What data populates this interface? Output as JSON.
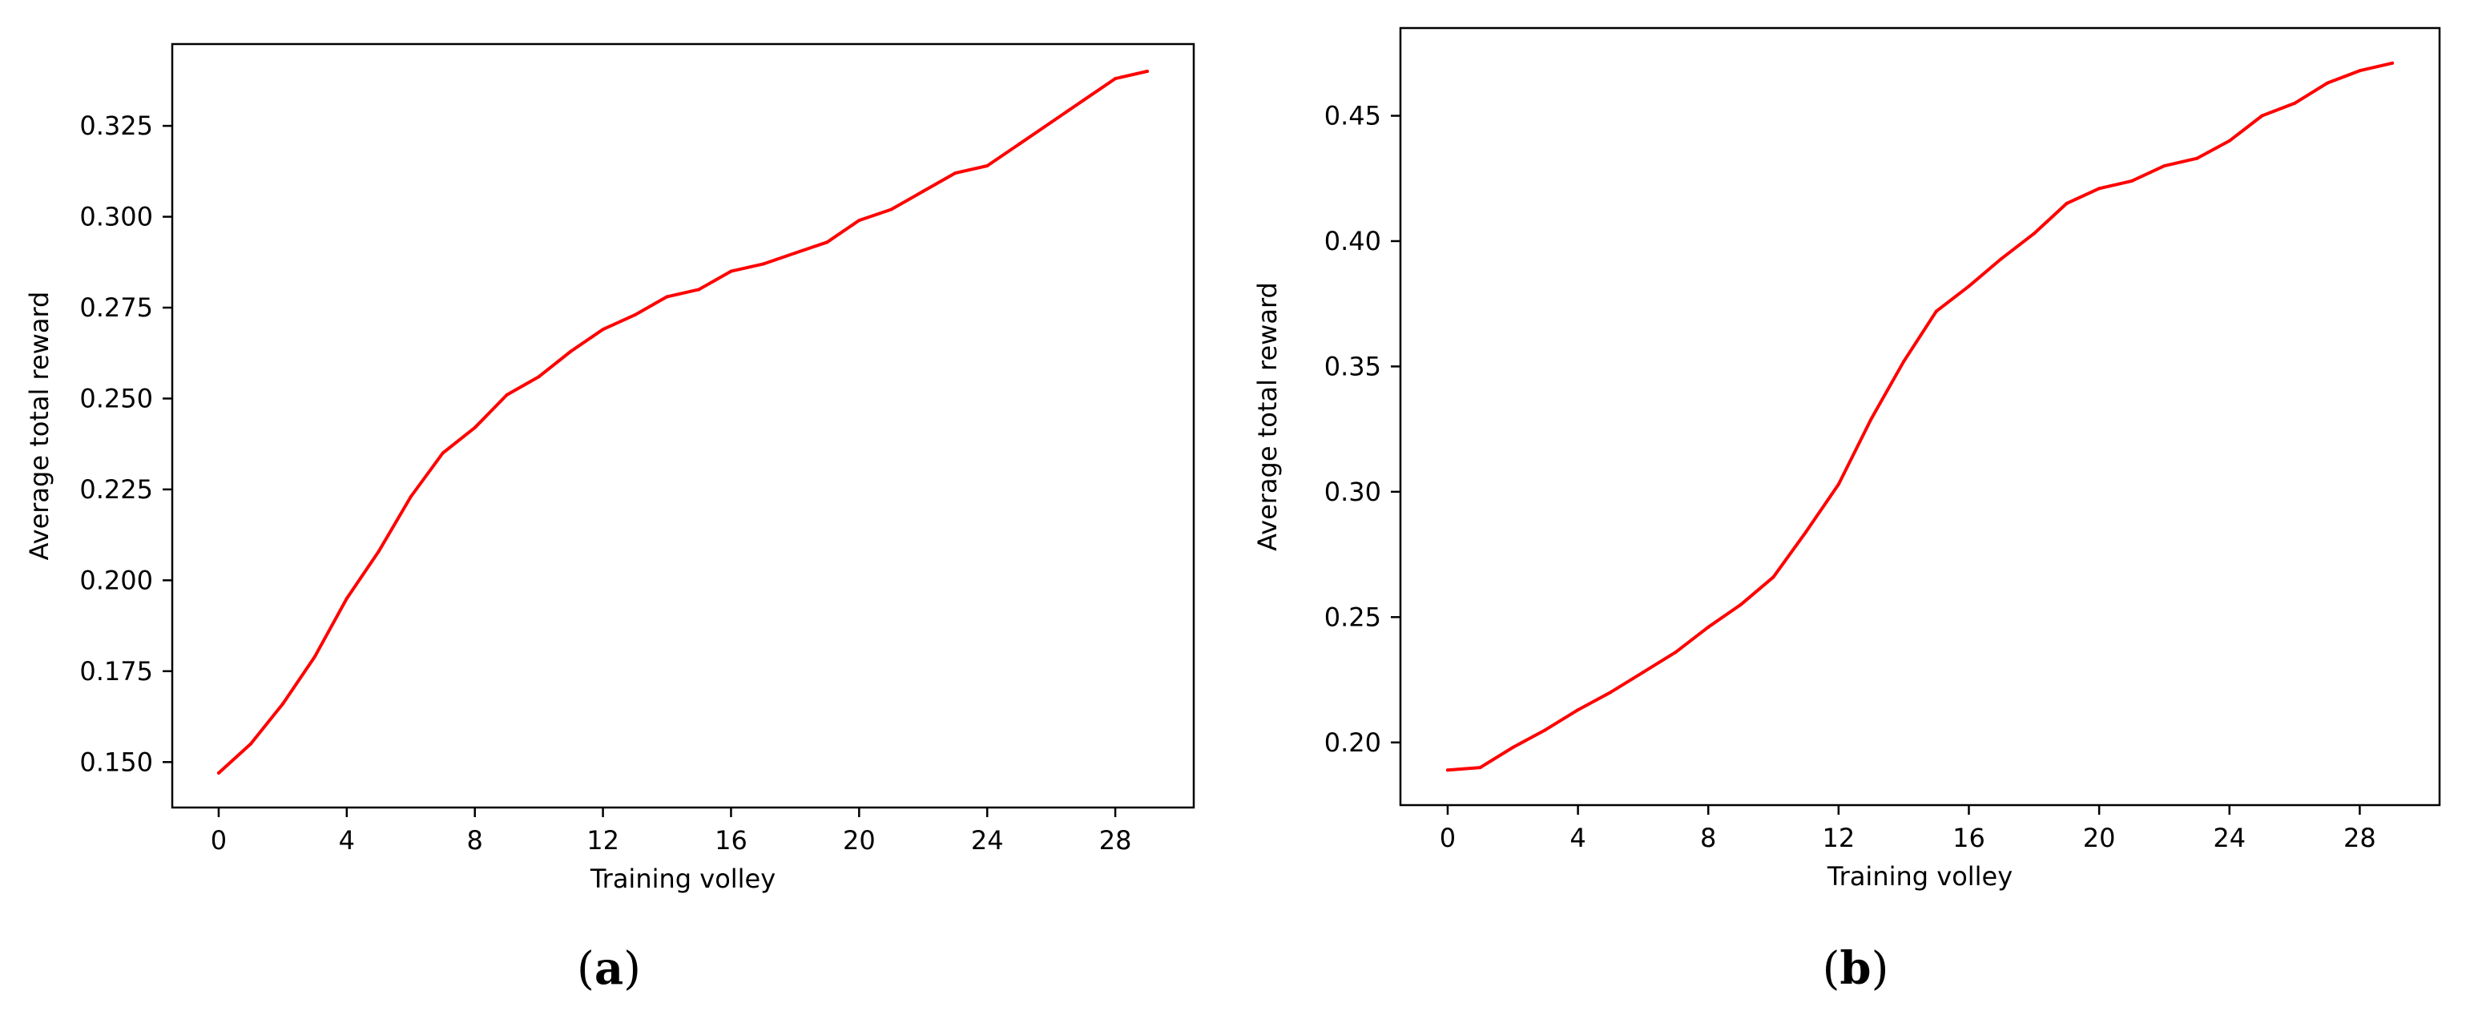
{
  "figure": {
    "panel_a_caption_open": "(",
    "panel_a_caption_letter": "a",
    "panel_a_caption_close": ")",
    "panel_b_caption_open": "(",
    "panel_b_caption_letter": "b",
    "panel_b_caption_close": ")"
  },
  "chart_data": [
    {
      "panel": "a",
      "type": "line",
      "title": "",
      "xlabel": "Training volley",
      "ylabel": "Average total reward",
      "xlim": [
        -1.45,
        30.45
      ],
      "ylim": [
        0.1375,
        0.3475
      ],
      "xticks": [
        0,
        4,
        8,
        12,
        16,
        20,
        24,
        28
      ],
      "xtick_labels": [
        "0",
        "4",
        "8",
        "12",
        "16",
        "20",
        "24",
        "28"
      ],
      "yticks": [
        0.15,
        0.175,
        0.2,
        0.225,
        0.25,
        0.275,
        0.3,
        0.325
      ],
      "ytick_labels": [
        "0.150",
        "0.175",
        "0.200",
        "0.225",
        "0.250",
        "0.275",
        "0.300",
        "0.325"
      ],
      "grid": false,
      "line_color": "#ff0000",
      "series": [
        {
          "x": [
            0,
            1,
            2,
            3,
            4,
            5,
            6,
            7,
            8,
            9,
            10,
            11,
            12,
            13,
            14,
            15,
            16,
            17,
            18,
            19,
            20,
            21,
            22,
            23,
            24,
            25,
            26,
            27,
            28,
            29
          ],
          "y": [
            0.147,
            0.155,
            0.166,
            0.179,
            0.195,
            0.208,
            0.223,
            0.235,
            0.242,
            0.251,
            0.256,
            0.263,
            0.269,
            0.273,
            0.278,
            0.28,
            0.285,
            0.287,
            0.29,
            0.293,
            0.299,
            0.302,
            0.307,
            0.312,
            0.314,
            0.32,
            0.326,
            0.332,
            0.338,
            0.34
          ]
        }
      ]
    },
    {
      "panel": "b",
      "type": "line",
      "title": "",
      "xlabel": "Training volley",
      "ylabel": "Average total reward",
      "xlim": [
        -1.45,
        30.45
      ],
      "ylim": [
        0.175,
        0.485
      ],
      "xticks": [
        0,
        4,
        8,
        12,
        16,
        20,
        24,
        28
      ],
      "xtick_labels": [
        "0",
        "4",
        "8",
        "12",
        "16",
        "20",
        "24",
        "28"
      ],
      "yticks": [
        0.2,
        0.25,
        0.3,
        0.35,
        0.4,
        0.45
      ],
      "ytick_labels": [
        "0.20",
        "0.25",
        "0.30",
        "0.35",
        "0.40",
        "0.45"
      ],
      "grid": false,
      "line_color": "#ff0000",
      "series": [
        {
          "x": [
            0,
            1,
            2,
            3,
            4,
            5,
            6,
            7,
            8,
            9,
            10,
            11,
            12,
            13,
            14,
            15,
            16,
            17,
            18,
            19,
            20,
            21,
            22,
            23,
            24,
            25,
            26,
            27,
            28,
            29
          ],
          "y": [
            0.189,
            0.19,
            0.198,
            0.205,
            0.213,
            0.22,
            0.228,
            0.236,
            0.246,
            0.255,
            0.266,
            0.284,
            0.303,
            0.329,
            0.352,
            0.372,
            0.382,
            0.393,
            0.403,
            0.415,
            0.421,
            0.424,
            0.43,
            0.433,
            0.44,
            0.45,
            0.455,
            0.463,
            0.468,
            0.471
          ]
        }
      ]
    }
  ]
}
